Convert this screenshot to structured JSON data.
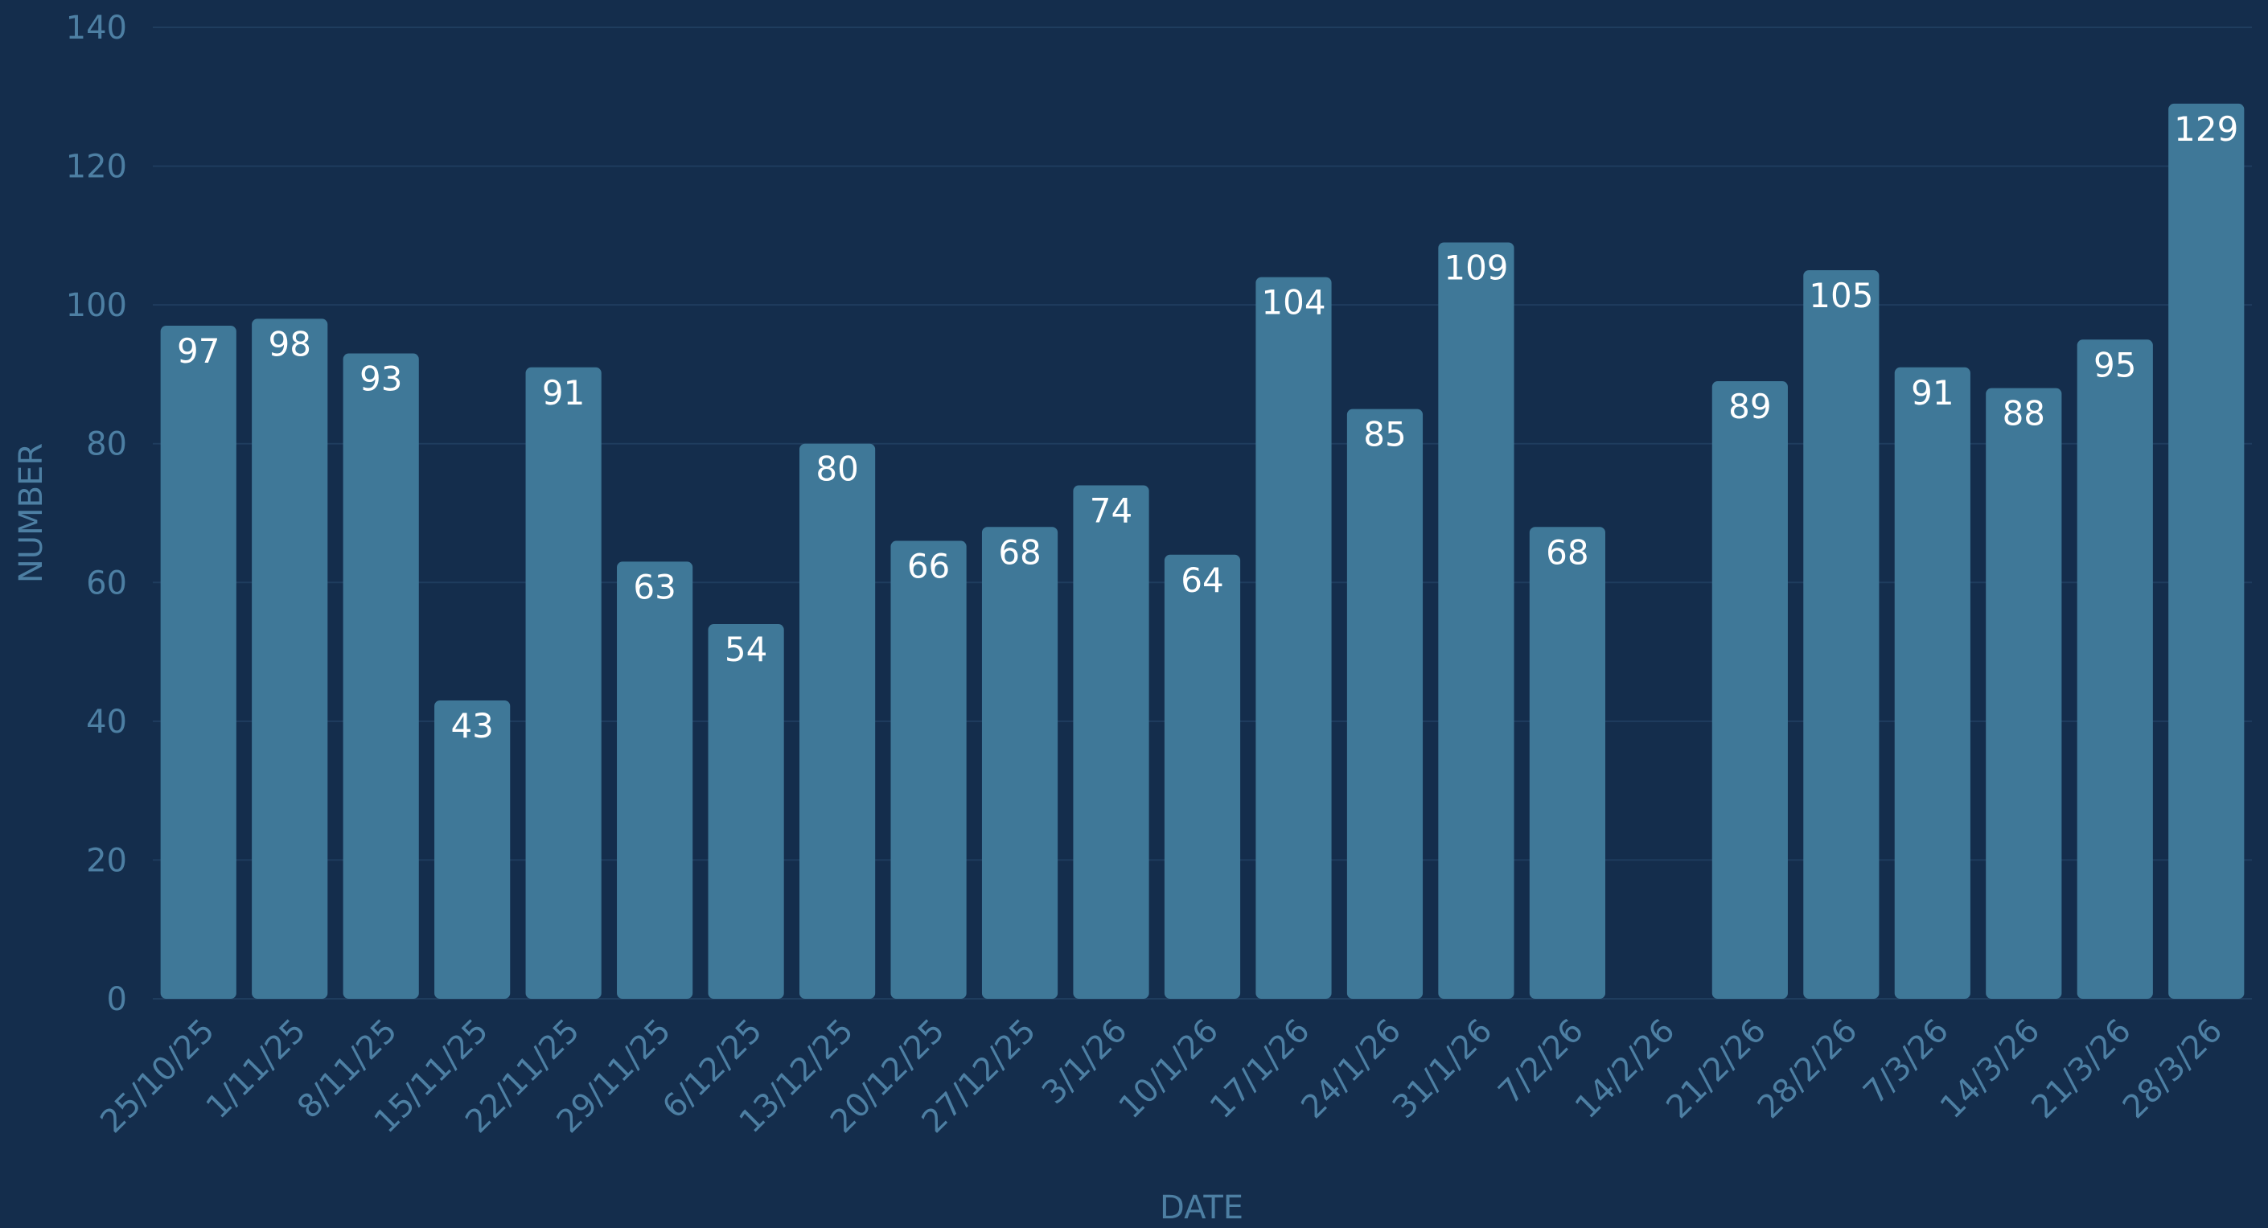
{
  "chart_data": {
    "type": "bar",
    "xlabel": "DATE",
    "ylabel": "NUMBER",
    "ylim": [
      0,
      140
    ],
    "yticks": [
      0,
      20,
      40,
      60,
      80,
      100,
      120,
      140
    ],
    "categories": [
      "25/10/25",
      "1/11/25",
      "8/11/25",
      "15/11/25",
      "22/11/25",
      "29/11/25",
      "6/12/25",
      "13/12/25",
      "20/12/25",
      "27/12/25",
      "3/1/26",
      "10/1/26",
      "17/1/26",
      "24/1/26",
      "31/1/26",
      "7/2/26",
      "14/2/26",
      "21/2/26",
      "28/2/26",
      "7/3/26",
      "14/3/26",
      "21/3/26",
      "28/3/26"
    ],
    "values": [
      97,
      98,
      93,
      43,
      91,
      63,
      54,
      80,
      66,
      68,
      74,
      64,
      104,
      85,
      109,
      68,
      null,
      89,
      105,
      91,
      88,
      95,
      129
    ],
    "data_labels": true,
    "grid": true,
    "legend": "none",
    "colors": {
      "background": "#142d4c",
      "bar": "#3f7898",
      "grid": "#1f3d5e",
      "axis_text": "#4d7fa3",
      "bar_label": "#ffffff"
    }
  }
}
